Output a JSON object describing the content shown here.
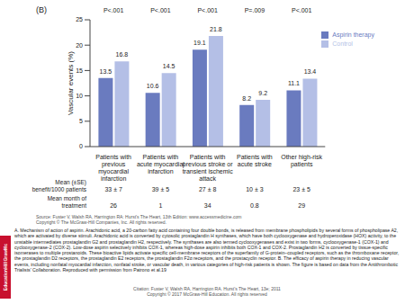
{
  "chart_data": {
    "type": "bar",
    "panel_label": "(B)",
    "y_label": "Vascular events (%)",
    "categories": [
      "Patients with previous myocardial infarction",
      "Patients with acute myocardial infarction",
      "Patients with previous stroke or transient ischemic attack",
      "Patients with acute stroke",
      "Other high-risk patients"
    ],
    "series": [
      {
        "name": "Aspirin therapy",
        "color": "#6a7bbf",
        "values": [
          13.5,
          10.6,
          19.1,
          8.2,
          11.1
        ]
      },
      {
        "name": "Control",
        "color": "#b4bfe6",
        "values": [
          16.8,
          14.5,
          21.8,
          9.2,
          13.4
        ]
      }
    ],
    "ylim": [
      0,
      25
    ],
    "yticks": [
      0,
      5,
      10,
      15,
      20,
      25
    ],
    "grid": false,
    "legend": "top right",
    "data_labels": true,
    "annotations": [
      "P<.001",
      "P<.001",
      "P<.001",
      "P=.009",
      "P<.001"
    ],
    "rows": [
      {
        "label": "Mean (±SE) benefit/1000 patients",
        "values": [
          "33 ± 7",
          "39 ± 5",
          "27 ± 8",
          "10 ± 3",
          "23 ± 5"
        ]
      },
      {
        "label": "Mean month of treatment",
        "values": [
          "26",
          "1",
          "34",
          "0.8",
          "29"
        ]
      }
    ]
  },
  "source": "Source: Fuster V, Walsh RA, Harrington RA: Hurst's The Heart, 13th Edition: www.accessmedicine.com",
  "source_copyright": "Copyright © The McGraw-Hill Companies, Inc. All rights reserved.",
  "caption": "A. Mechanism of action of aspirin. Arachidonic acid, a 20-carbon fatty acid containing four double bonds, is released from membrane phospholipids by several forms of phospholipase A2, which are activated by diverse stimuli. Arachidonic acid is converted by cytosolic prostaglandin H synthases, which have both cyclooxygenase and hydroperoxidase (HOX) activity, to the unstable intermediates prostaglandin G2 and prostaglandin H2, respectively. The synthases are also termed cyclooxygenases and exist in two forms, cyclooxygenase-1 (COX-1) and cyclooxygenase-2 (COX-2). Low-dose aspirin selectively inhibits COX-1, whereas high-dose aspirin inhibits both COX-1 and COX-2. Prostaglandin H2 is converted by tissue-specific isomerases to multiple prostanoids. These bioactive lipids activate specific cell-membrane receptors of the superfamily of G-protein–coupled receptors, such as the thromboxane receptor, the prostaglandin D2 receptors, the prostaglandin E2 receptors, the prostaglandin F2α receptors, and the prostacyclin receptor. B. The efficacy of aspirin therapy in reducing vascular events, including nonfatal myocardial infarction, nonfatal stroke, or vascular death, in various categories of high-risk patients is shown. The figure is based on data from the Antithrombotic Trialists' Collaboration. Reproduced with permission from Patrono et al.19",
  "citation": "Citation: Fuster V, Walsh RA, Harrington RA. Hurst's The Heart, 13e; 2011",
  "copyright": "Copyright © 2017 McGraw-Hill Education. All rights reserved",
  "logo": [
    "Mc",
    "Graw",
    "Hill",
    "Education"
  ]
}
